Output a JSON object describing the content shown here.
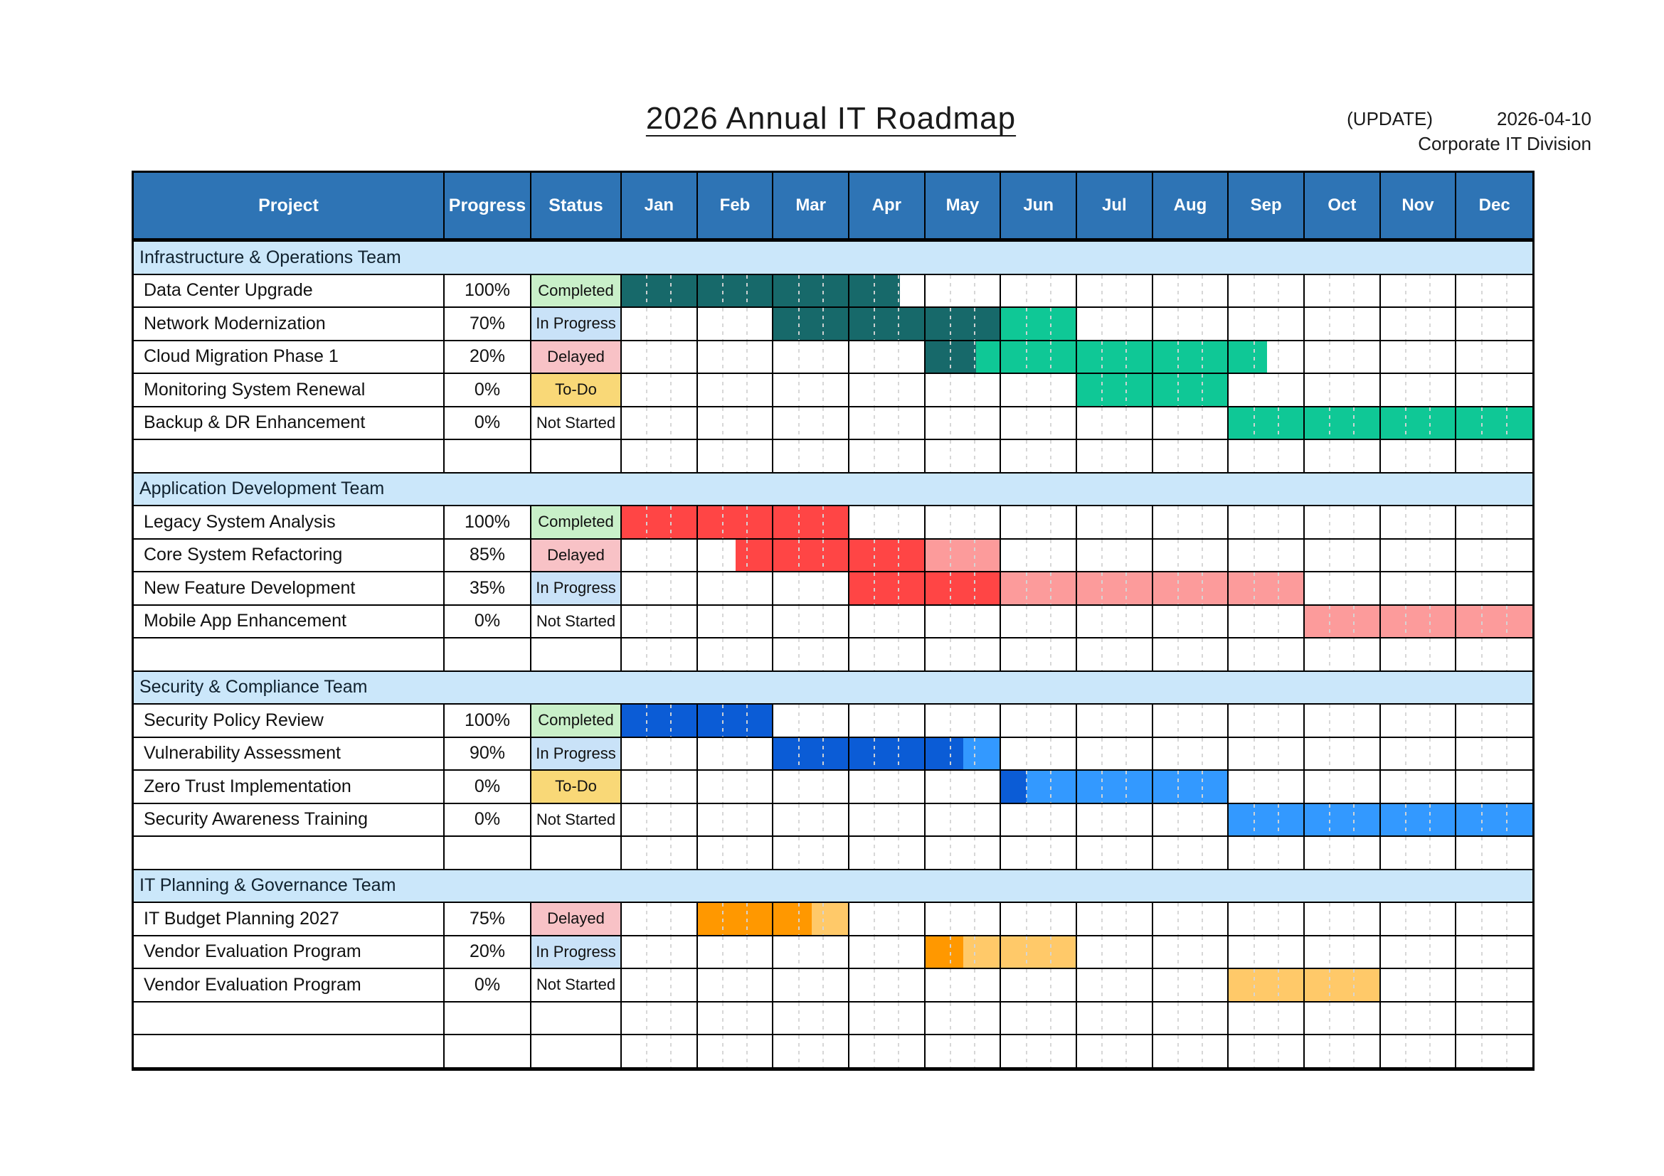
{
  "title": "2026 Annual IT Roadmap",
  "meta": {
    "update_label": "(UPDATE)",
    "update_date": "2026-04-10",
    "org": "Corporate IT Division"
  },
  "columns": {
    "project": "Project",
    "progress": "Progress",
    "status": "Status"
  },
  "months": [
    "Jan",
    "Feb",
    "Mar",
    "Apr",
    "May",
    "Jun",
    "Jul",
    "Aug",
    "Sep",
    "Oct",
    "Nov",
    "Dec"
  ],
  "colors": {
    "header_bg": "#2E74B5",
    "section_band_bg": "#CBE7FA",
    "status_fills": {
      "Completed": "#C9F0C9",
      "In Progress": "#C9E2F8",
      "Delayed": "#F8C2C6",
      "To-Do": "#F9D877",
      "Not Started": ""
    },
    "bar_families": {
      "teal": {
        "dark": "#17696A",
        "light": "#0FC896"
      },
      "red": {
        "dark": "#FF4545",
        "light": "#FC9B9B"
      },
      "blue": {
        "dark": "#0B5CD6",
        "light": "#3399FF"
      },
      "orange": {
        "dark": "#FF9800",
        "light": "#FFC969"
      }
    }
  },
  "sections": [
    {
      "name": "Infrastructure & Operations Team",
      "family": "teal",
      "rows": [
        {
          "project": "Data Center Upgrade",
          "progress": "100%",
          "status": "Completed",
          "bar": {
            "start": 0,
            "dark_end": 3.67,
            "end": 3.67
          }
        },
        {
          "project": "Network Modernization",
          "progress": "70%",
          "status": "In Progress",
          "bar": {
            "start": 2,
            "dark_end": 5,
            "end": 6
          }
        },
        {
          "project": "Cloud Migration Phase 1",
          "progress": "20%",
          "status": "Delayed",
          "bar": {
            "start": 4,
            "dark_end": 4.67,
            "end": 8.5
          }
        },
        {
          "project": "Monitoring System Renewal",
          "progress": "0%",
          "status": "To-Do",
          "bar": {
            "start": 6,
            "dark_end": 6,
            "end": 8
          }
        },
        {
          "project": "Backup & DR Enhancement",
          "progress": "0%",
          "status": "Not Started",
          "bar": {
            "start": 8,
            "dark_end": 8,
            "end": 12
          }
        },
        {
          "empty": true
        }
      ]
    },
    {
      "name": "Application Development Team",
      "family": "red",
      "rows": [
        {
          "project": "Legacy System Analysis",
          "progress": "100%",
          "status": "Completed",
          "bar": {
            "start": 0,
            "dark_end": 3,
            "end": 3
          }
        },
        {
          "project": "Core System Refactoring",
          "progress": "85%",
          "status": "Delayed",
          "bar": {
            "start": 1.5,
            "dark_end": 4,
            "end": 5
          }
        },
        {
          "project": "New Feature Development",
          "progress": "35%",
          "status": "In Progress",
          "bar": {
            "start": 3,
            "dark_end": 5,
            "end": 9
          }
        },
        {
          "project": "Mobile App Enhancement",
          "progress": "0%",
          "status": "Not Started",
          "bar": {
            "start": 9,
            "dark_end": 9,
            "end": 12
          }
        },
        {
          "empty": true
        }
      ]
    },
    {
      "name": "Security & Compliance Team",
      "family": "blue",
      "rows": [
        {
          "project": "Security Policy Review",
          "progress": "100%",
          "status": "Completed",
          "bar": {
            "start": 0,
            "dark_end": 2,
            "end": 2
          }
        },
        {
          "project": "Vulnerability Assessment",
          "progress": "90%",
          "status": "In Progress",
          "bar": {
            "start": 2,
            "dark_end": 4.5,
            "end": 5
          }
        },
        {
          "project": "Zero Trust Implementation",
          "progress": "0%",
          "status": "To-Do",
          "bar": {
            "start": 5,
            "dark_end": 5.33,
            "end": 8
          }
        },
        {
          "project": "Security Awareness Training",
          "progress": "0%",
          "status": "Not Started",
          "bar": {
            "start": 8,
            "dark_end": 8,
            "end": 12
          }
        },
        {
          "empty": true
        }
      ]
    },
    {
      "name": "IT Planning & Governance Team",
      "family": "orange",
      "rows": [
        {
          "project": "IT Budget Planning 2027",
          "progress": "75%",
          "status": "Delayed",
          "bar": {
            "start": 1,
            "dark_end": 2.5,
            "end": 3
          }
        },
        {
          "project": "Vendor Evaluation Program",
          "progress": "20%",
          "status": "In Progress",
          "bar": {
            "start": 4,
            "dark_end": 4.5,
            "end": 6
          }
        },
        {
          "project": "Vendor Evaluation Program",
          "progress": "0%",
          "status": "Not Started",
          "bar": {
            "start": 8,
            "dark_end": 8,
            "end": 10
          }
        },
        {
          "empty": true
        },
        {
          "empty": true
        }
      ]
    }
  ],
  "chart_data": {
    "type": "table",
    "subtype": "gantt",
    "title": "2026 Annual IT Roadmap",
    "x_axis": {
      "unit": "month",
      "labels": [
        "Jan",
        "Feb",
        "Mar",
        "Apr",
        "May",
        "Jun",
        "Jul",
        "Aug",
        "Sep",
        "Oct",
        "Nov",
        "Dec"
      ],
      "range": [
        0,
        12
      ]
    },
    "tasks": [
      {
        "team": "Infrastructure & Operations Team",
        "project": "Data Center Upgrade",
        "progress_pct": 100,
        "status": "Completed",
        "start": 0,
        "end": 3.67,
        "completed_until": 3.67
      },
      {
        "team": "Infrastructure & Operations Team",
        "project": "Network Modernization",
        "progress_pct": 70,
        "status": "In Progress",
        "start": 2,
        "end": 6,
        "completed_until": 5
      },
      {
        "team": "Infrastructure & Operations Team",
        "project": "Cloud Migration Phase 1",
        "progress_pct": 20,
        "status": "Delayed",
        "start": 4,
        "end": 8.5,
        "completed_until": 4.67
      },
      {
        "team": "Infrastructure & Operations Team",
        "project": "Monitoring System Renewal",
        "progress_pct": 0,
        "status": "To-Do",
        "start": 6,
        "end": 8,
        "completed_until": 6
      },
      {
        "team": "Infrastructure & Operations Team",
        "project": "Backup & DR Enhancement",
        "progress_pct": 0,
        "status": "Not Started",
        "start": 8,
        "end": 12,
        "completed_until": 8
      },
      {
        "team": "Application Development Team",
        "project": "Legacy System Analysis",
        "progress_pct": 100,
        "status": "Completed",
        "start": 0,
        "end": 3,
        "completed_until": 3
      },
      {
        "team": "Application Development Team",
        "project": "Core System Refactoring",
        "progress_pct": 85,
        "status": "Delayed",
        "start": 1.5,
        "end": 5,
        "completed_until": 4
      },
      {
        "team": "Application Development Team",
        "project": "New Feature Development",
        "progress_pct": 35,
        "status": "In Progress",
        "start": 3,
        "end": 9,
        "completed_until": 5
      },
      {
        "team": "Application Development Team",
        "project": "Mobile App Enhancement",
        "progress_pct": 0,
        "status": "Not Started",
        "start": 9,
        "end": 12,
        "completed_until": 9
      },
      {
        "team": "Security & Compliance Team",
        "project": "Security Policy Review",
        "progress_pct": 100,
        "status": "Completed",
        "start": 0,
        "end": 2,
        "completed_until": 2
      },
      {
        "team": "Security & Compliance Team",
        "project": "Vulnerability Assessment",
        "progress_pct": 90,
        "status": "In Progress",
        "start": 2,
        "end": 5,
        "completed_until": 4.5
      },
      {
        "team": "Security & Compliance Team",
        "project": "Zero Trust Implementation",
        "progress_pct": 0,
        "status": "To-Do",
        "start": 5,
        "end": 8,
        "completed_until": 5.33
      },
      {
        "team": "Security & Compliance Team",
        "project": "Security Awareness Training",
        "progress_pct": 0,
        "status": "Not Started",
        "start": 8,
        "end": 12,
        "completed_until": 8
      },
      {
        "team": "IT Planning & Governance Team",
        "project": "IT Budget Planning 2027",
        "progress_pct": 75,
        "status": "Delayed",
        "start": 1,
        "end": 3,
        "completed_until": 2.5
      },
      {
        "team": "IT Planning & Governance Team",
        "project": "Vendor Evaluation Program",
        "progress_pct": 20,
        "status": "In Progress",
        "start": 4,
        "end": 6,
        "completed_until": 4.5
      },
      {
        "team": "IT Planning & Governance Team",
        "project": "Vendor Evaluation Program",
        "progress_pct": 0,
        "status": "Not Started",
        "start": 8,
        "end": 10,
        "completed_until": 8
      }
    ]
  }
}
